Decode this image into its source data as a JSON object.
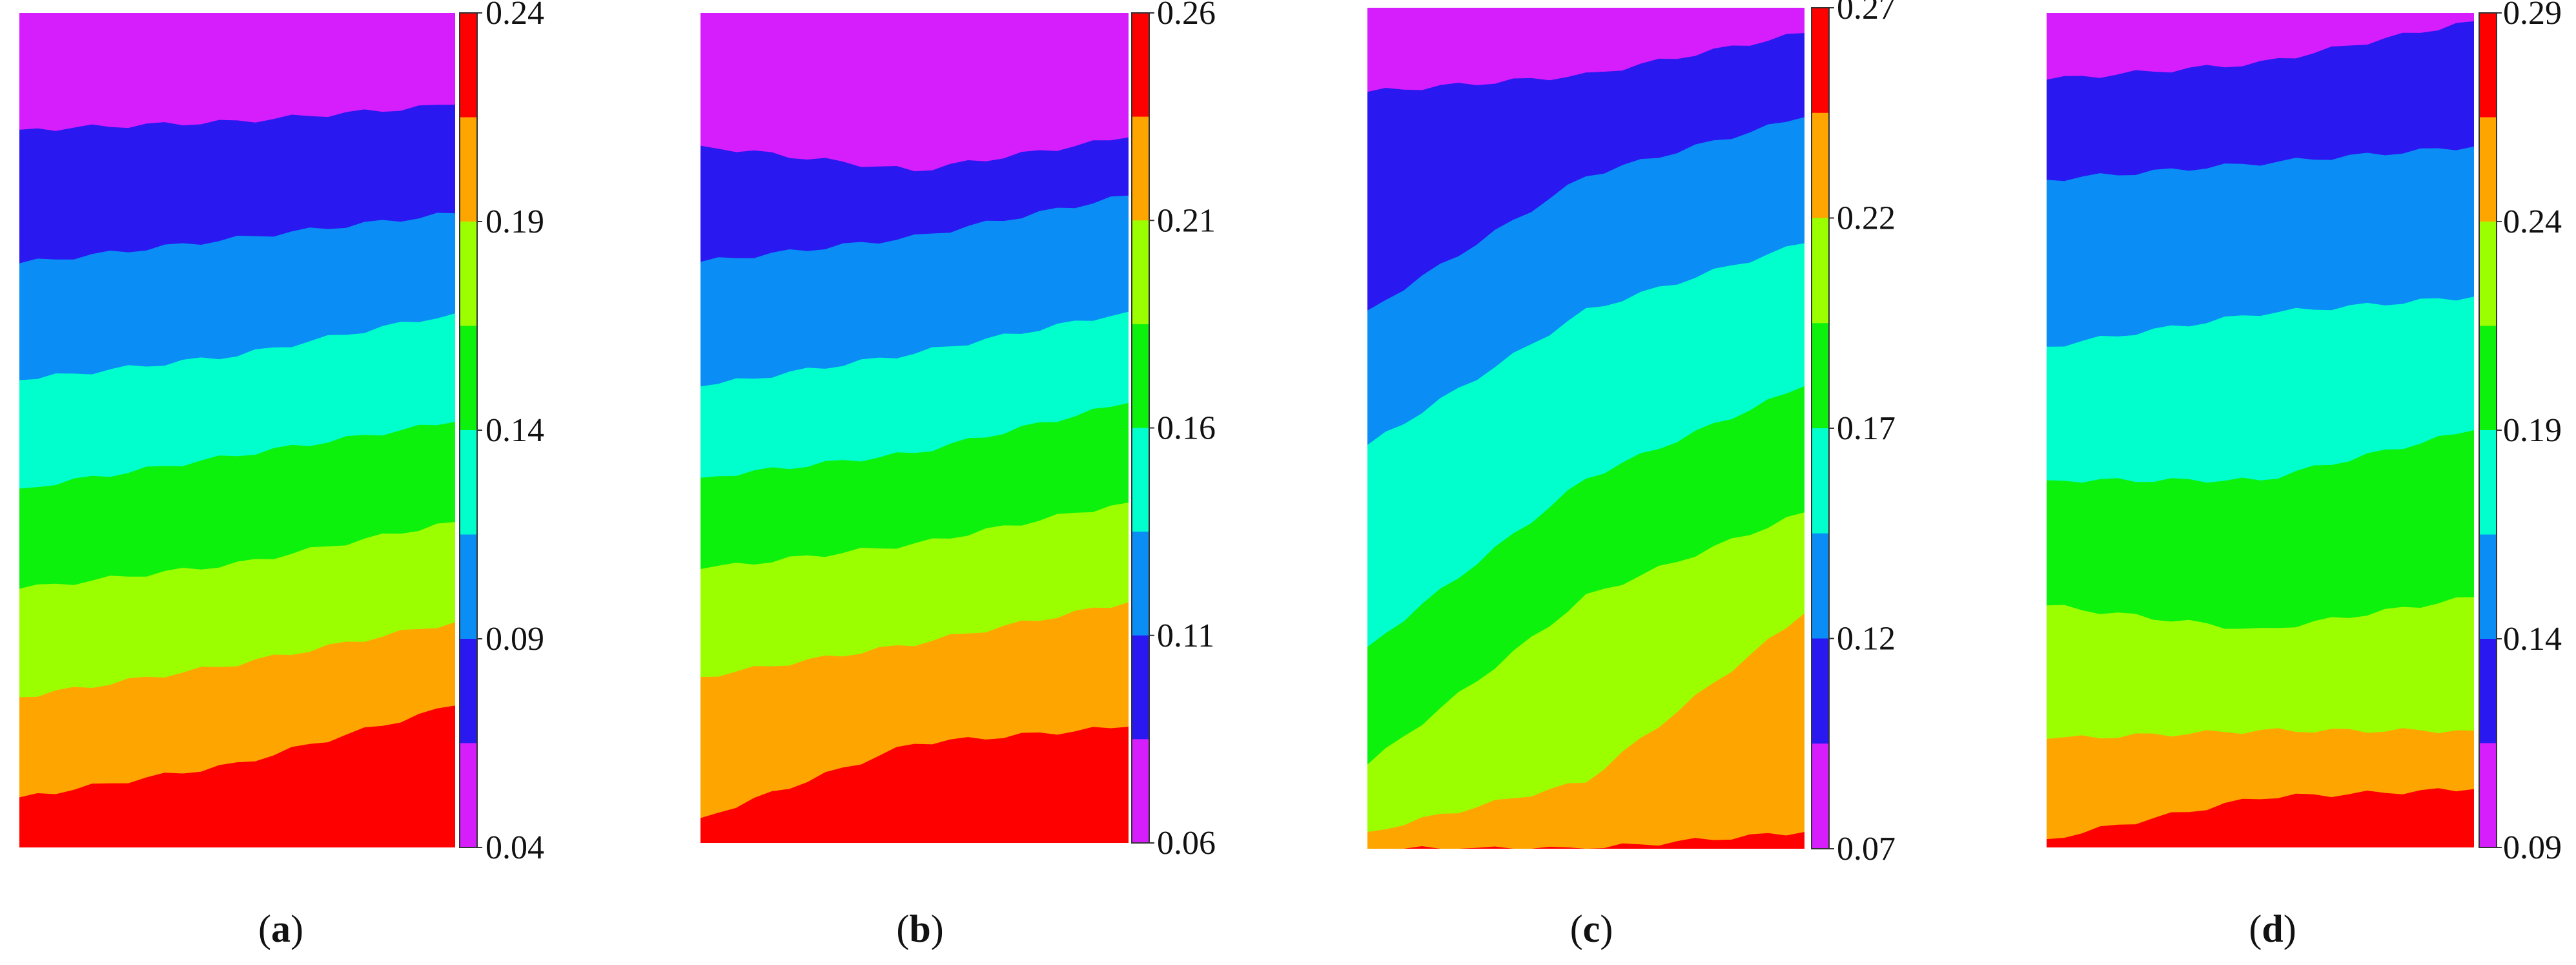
{
  "figure": {
    "palette": [
      "#d61efc",
      "#2a18f0",
      "#0a8df5",
      "#00ffcc",
      "#0df20d",
      "#9bff00",
      "#ffa500",
      "#ff0000"
    ],
    "panels": [
      {
        "label": "a",
        "ticks": [
          "0.24",
          "0.19",
          "0.14",
          "0.09",
          "0.04"
        ]
      },
      {
        "label": "b",
        "ticks": [
          "0.26",
          "0.21",
          "0.16",
          "0.11",
          "0.06"
        ]
      },
      {
        "label": "c",
        "ticks": [
          "0.27",
          "0.22",
          "0.17",
          "0.12",
          "0.07"
        ]
      },
      {
        "label": "d",
        "ticks": [
          "0.29",
          "0.24",
          "0.19",
          "0.14",
          "0.09"
        ]
      }
    ]
  },
  "chart_data": [
    {
      "type": "heatmap",
      "panel": "a",
      "colorbar": {
        "min": 0.04,
        "max": 0.24,
        "ticks": [
          0.24,
          0.19,
          0.14,
          0.09,
          0.04
        ],
        "levels": 8
      }
    },
    {
      "type": "heatmap",
      "panel": "b",
      "colorbar": {
        "min": 0.06,
        "max": 0.26,
        "ticks": [
          0.26,
          0.21,
          0.16,
          0.11,
          0.06
        ],
        "levels": 8
      }
    },
    {
      "type": "heatmap",
      "panel": "c",
      "colorbar": {
        "min": 0.07,
        "max": 0.27,
        "ticks": [
          0.27,
          0.22,
          0.17,
          0.12,
          0.07
        ],
        "levels": 8
      }
    },
    {
      "type": "heatmap",
      "panel": "d",
      "colorbar": {
        "min": 0.09,
        "max": 0.29,
        "ticks": [
          0.29,
          0.24,
          0.19,
          0.14,
          0.09
        ],
        "levels": 8
      }
    }
  ]
}
